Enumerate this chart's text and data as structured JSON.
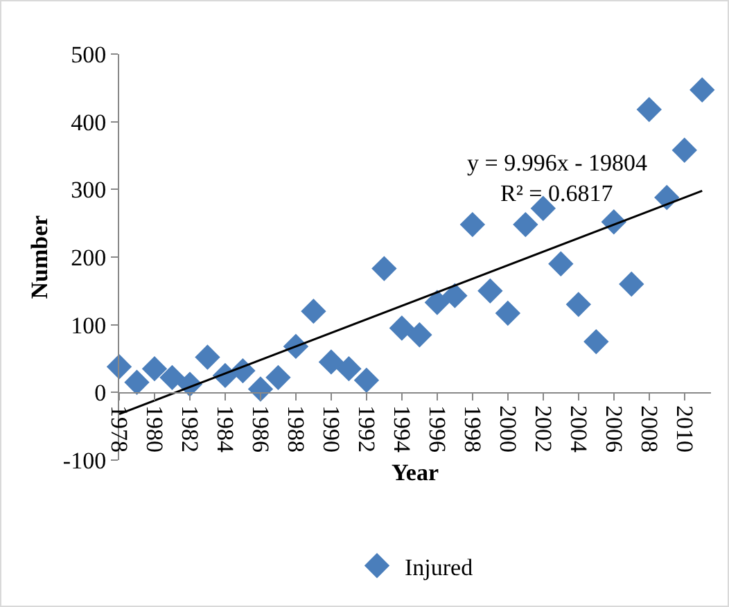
{
  "chart_data": {
    "type": "scatter",
    "xlabel": "Year",
    "ylabel": "Number",
    "x": [
      1978,
      1979,
      1980,
      1981,
      1982,
      1983,
      1984,
      1985,
      1986,
      1987,
      1988,
      1989,
      1990,
      1991,
      1992,
      1993,
      1994,
      1995,
      1996,
      1997,
      1998,
      1999,
      2000,
      2001,
      2002,
      2003,
      2004,
      2005,
      2006,
      2007,
      2008,
      2009,
      2010,
      2011
    ],
    "series": [
      {
        "name": "Injured",
        "color": "#4a7ebb",
        "marker": "diamond",
        "values": [
          38,
          15,
          35,
          22,
          12,
          52,
          25,
          32,
          5,
          22,
          68,
          120,
          45,
          35,
          18,
          183,
          95,
          85,
          133,
          143,
          248,
          150,
          117,
          248,
          272,
          190,
          130,
          75,
          252,
          160,
          418,
          288,
          358,
          447
        ]
      },
      {
        "type": "line",
        "color": "#000000",
        "marker": "none",
        "x": [
          1978,
          2011
        ],
        "values": [
          -32,
          298
        ]
      }
    ],
    "xlim": [
      1978,
      2011.5
    ],
    "xticks": [
      1978,
      1980,
      1982,
      1984,
      1986,
      1988,
      1990,
      1992,
      1994,
      1996,
      1998,
      2000,
      2002,
      2004,
      2006,
      2008,
      2010
    ],
    "ylim": [
      -100,
      500
    ],
    "yticks": [
      -100,
      0,
      100,
      200,
      300,
      400,
      500
    ],
    "grid": false,
    "legend": "bottom",
    "annotations": [
      "y = 9.996x - 19804",
      "R² = 0.6817"
    ]
  }
}
